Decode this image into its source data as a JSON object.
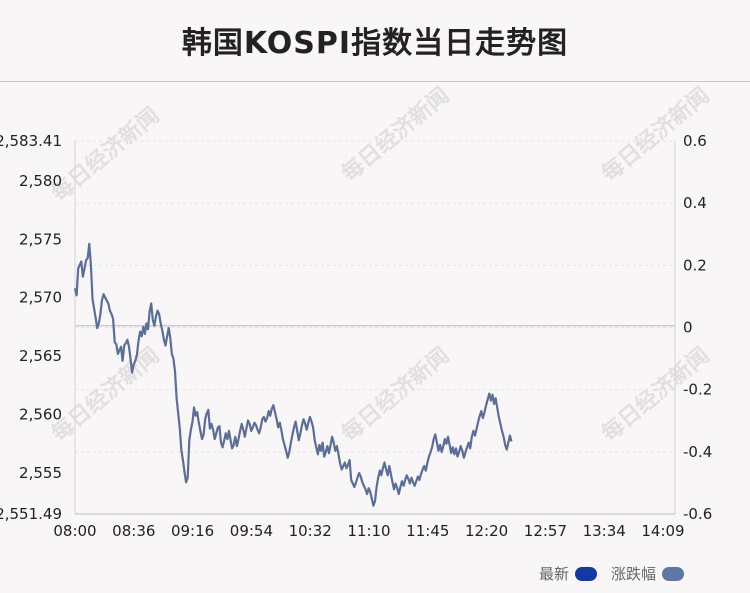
{
  "title": "韩国KOSPI指数当日走势图",
  "watermark": "每日经济新闻",
  "chart_data": {
    "type": "line",
    "ylim": [
      2551.49,
      2583.41
    ],
    "y_left_ticks": [
      "2,583.41",
      "2,580",
      "2,575",
      "2,570",
      "2,565",
      "2,560",
      "2,555",
      "2,551.49"
    ],
    "y_left_tick_values": [
      2583.41,
      2580,
      2575,
      2570,
      2565,
      2560,
      2555,
      2551.49
    ],
    "y_right_ticks": [
      "0.6",
      "0.4",
      "0.2",
      "0",
      "-0.2",
      "-0.4",
      "-0.6"
    ],
    "y_right_tick_values": [
      0.6,
      0.4,
      0.2,
      0,
      -0.2,
      -0.4,
      -0.6
    ],
    "y_right_range": [
      -0.6,
      0.6
    ],
    "x_ticks": [
      "08:00",
      "08:36",
      "09:16",
      "09:54",
      "10:32",
      "11:10",
      "11:45",
      "12:20",
      "12:57",
      "13:34",
      "14:09"
    ],
    "x_range_minutes": [
      0,
      378
    ],
    "series": [
      {
        "name": "最新",
        "color": "#5a6e9a",
        "points": [
          [
            0,
            2570.8
          ],
          [
            1,
            2570.2
          ],
          [
            2,
            2572.5
          ],
          [
            4,
            2573.1
          ],
          [
            5,
            2571.8
          ],
          [
            7,
            2573.2
          ],
          [
            8,
            2573.4
          ],
          [
            9,
            2574.6
          ],
          [
            10,
            2572.8
          ],
          [
            11,
            2569.9
          ],
          [
            13,
            2568.3
          ],
          [
            14,
            2567.4
          ],
          [
            15,
            2567.8
          ],
          [
            16,
            2568.6
          ],
          [
            17,
            2569.8
          ],
          [
            18,
            2570.3
          ],
          [
            19,
            2570.0
          ],
          [
            21,
            2569.5
          ],
          [
            22,
            2568.9
          ],
          [
            23,
            2568.6
          ],
          [
            24,
            2568.2
          ],
          [
            25,
            2566.2
          ],
          [
            26,
            2566.0
          ],
          [
            27,
            2565.2
          ],
          [
            29,
            2565.8
          ],
          [
            30,
            2564.6
          ],
          [
            31,
            2565.9
          ],
          [
            32,
            2566.1
          ],
          [
            33,
            2566.4
          ],
          [
            34,
            2565.8
          ],
          [
            35,
            2564.7
          ],
          [
            36,
            2563.6
          ],
          [
            37,
            2564.3
          ],
          [
            38,
            2564.6
          ],
          [
            39,
            2565.1
          ],
          [
            40,
            2566.3
          ],
          [
            41,
            2567.1
          ],
          [
            42,
            2566.7
          ],
          [
            43,
            2567.5
          ],
          [
            44,
            2566.9
          ],
          [
            45,
            2567.8
          ],
          [
            46,
            2567.3
          ],
          [
            47,
            2568.8
          ],
          [
            48,
            2569.5
          ],
          [
            49,
            2568.1
          ],
          [
            50,
            2567.6
          ],
          [
            51,
            2568.4
          ],
          [
            52,
            2568.9
          ],
          [
            53,
            2568.6
          ],
          [
            54,
            2567.8
          ],
          [
            55,
            2567.2
          ],
          [
            56,
            2566.4
          ],
          [
            57,
            2565.9
          ],
          [
            58,
            2566.7
          ],
          [
            59,
            2567.4
          ],
          [
            60,
            2566.6
          ],
          [
            61,
            2565.2
          ],
          [
            62,
            2564.8
          ],
          [
            63,
            2563.7
          ],
          [
            64,
            2561.4
          ],
          [
            65,
            2560.1
          ],
          [
            66,
            2558.8
          ],
          [
            67,
            2557.0
          ],
          [
            68,
            2556.1
          ],
          [
            69,
            2555.1
          ],
          [
            70,
            2554.2
          ],
          [
            71,
            2554.6
          ],
          [
            72,
            2557.8
          ],
          [
            73,
            2558.7
          ],
          [
            74,
            2559.4
          ],
          [
            75,
            2560.6
          ],
          [
            76,
            2559.9
          ],
          [
            77,
            2560.2
          ],
          [
            78,
            2559.3
          ],
          [
            79,
            2558.6
          ],
          [
            80,
            2557.9
          ],
          [
            81,
            2558.3
          ],
          [
            82,
            2559.6
          ],
          [
            83,
            2560.1
          ],
          [
            84,
            2560.4
          ],
          [
            85,
            2558.8
          ],
          [
            86,
            2559.2
          ],
          [
            87,
            2558.7
          ],
          [
            88,
            2557.9
          ],
          [
            89,
            2558.4
          ],
          [
            90,
            2558.9
          ],
          [
            91,
            2559.0
          ],
          [
            92,
            2557.6
          ],
          [
            93,
            2557.2
          ],
          [
            94,
            2557.8
          ],
          [
            95,
            2558.4
          ],
          [
            96,
            2557.9
          ],
          [
            97,
            2558.6
          ],
          [
            98,
            2557.8
          ],
          [
            99,
            2557.1
          ],
          [
            100,
            2557.4
          ],
          [
            101,
            2558.1
          ],
          [
            102,
            2557.3
          ],
          [
            103,
            2557.9
          ],
          [
            104,
            2558.6
          ],
          [
            105,
            2559.2
          ],
          [
            106,
            2558.7
          ],
          [
            107,
            2558.1
          ],
          [
            108,
            2558.8
          ],
          [
            109,
            2559.5
          ],
          [
            110,
            2559.2
          ],
          [
            111,
            2558.6
          ],
          [
            112,
            2558.9
          ],
          [
            113,
            2559.3
          ],
          [
            114,
            2559.1
          ],
          [
            115,
            2558.7
          ],
          [
            116,
            2558.4
          ],
          [
            117,
            2558.9
          ],
          [
            118,
            2559.6
          ],
          [
            119,
            2559.8
          ],
          [
            120,
            2559.4
          ],
          [
            121,
            2559.7
          ],
          [
            122,
            2560.3
          ],
          [
            123,
            2559.9
          ],
          [
            124,
            2560.5
          ],
          [
            125,
            2560.8
          ],
          [
            126,
            2560.2
          ],
          [
            127,
            2559.6
          ],
          [
            128,
            2558.9
          ],
          [
            129,
            2559.3
          ],
          [
            130,
            2558.7
          ],
          [
            131,
            2557.9
          ],
          [
            132,
            2557.4
          ],
          [
            133,
            2556.9
          ],
          [
            134,
            2556.3
          ],
          [
            135,
            2556.8
          ],
          [
            136,
            2557.6
          ],
          [
            137,
            2558.3
          ],
          [
            138,
            2558.9
          ],
          [
            139,
            2559.4
          ],
          [
            140,
            2558.6
          ],
          [
            141,
            2557.8
          ],
          [
            142,
            2558.4
          ],
          [
            143,
            2559.1
          ],
          [
            144,
            2559.6
          ],
          [
            145,
            2559.2
          ],
          [
            146,
            2558.7
          ],
          [
            147,
            2559.3
          ],
          [
            148,
            2559.8
          ],
          [
            149,
            2559.4
          ],
          [
            150,
            2558.9
          ],
          [
            151,
            2557.8
          ],
          [
            152,
            2557.2
          ],
          [
            153,
            2556.6
          ],
          [
            154,
            2557.4
          ],
          [
            155,
            2556.9
          ],
          [
            156,
            2557.6
          ],
          [
            157,
            2556.4
          ],
          [
            158,
            2556.8
          ],
          [
            159,
            2557.3
          ],
          [
            160,
            2556.7
          ],
          [
            161,
            2557.4
          ],
          [
            162,
            2558.1
          ],
          [
            163,
            2557.6
          ],
          [
            164,
            2556.9
          ],
          [
            165,
            2557.3
          ],
          [
            166,
            2556.6
          ],
          [
            167,
            2555.8
          ],
          [
            168,
            2555.3
          ],
          [
            169,
            2555.6
          ],
          [
            170,
            2555.9
          ],
          [
            171,
            2555.4
          ],
          [
            172,
            2555.7
          ],
          [
            173,
            2556.1
          ],
          [
            174,
            2554.4
          ],
          [
            175,
            2554.1
          ],
          [
            176,
            2553.8
          ],
          [
            177,
            2554.2
          ],
          [
            178,
            2554.6
          ],
          [
            179,
            2555.0
          ],
          [
            180,
            2554.7
          ],
          [
            181,
            2554.2
          ],
          [
            182,
            2553.9
          ],
          [
            183,
            2553.6
          ],
          [
            184,
            2553.2
          ],
          [
            185,
            2553.7
          ],
          [
            186,
            2553.4
          ],
          [
            187,
            2552.8
          ],
          [
            188,
            2552.2
          ],
          [
            189,
            2552.6
          ],
          [
            190,
            2553.8
          ],
          [
            191,
            2554.6
          ],
          [
            192,
            2555.2
          ],
          [
            193,
            2554.8
          ],
          [
            194,
            2555.4
          ],
          [
            195,
            2555.9
          ],
          [
            196,
            2555.3
          ],
          [
            197,
            2554.8
          ],
          [
            198,
            2555.6
          ],
          [
            199,
            2554.9
          ],
          [
            200,
            2554.2
          ],
          [
            201,
            2553.6
          ],
          [
            202,
            2554.1
          ],
          [
            203,
            2553.7
          ],
          [
            204,
            2553.2
          ],
          [
            205,
            2553.8
          ],
          [
            206,
            2554.3
          ],
          [
            207,
            2553.9
          ],
          [
            208,
            2554.4
          ],
          [
            209,
            2554.8
          ],
          [
            210,
            2554.5
          ],
          [
            211,
            2554.1
          ],
          [
            212,
            2554.6
          ],
          [
            213,
            2554.2
          ],
          [
            214,
            2553.9
          ],
          [
            215,
            2554.3
          ],
          [
            216,
            2554.7
          ],
          [
            217,
            2554.4
          ],
          [
            218,
            2554.9
          ],
          [
            219,
            2555.3
          ],
          [
            220,
            2555.6
          ],
          [
            221,
            2555.2
          ],
          [
            222,
            2555.9
          ],
          [
            223,
            2556.4
          ],
          [
            224,
            2556.8
          ],
          [
            225,
            2557.2
          ],
          [
            226,
            2557.9
          ],
          [
            227,
            2558.3
          ],
          [
            228,
            2557.6
          ],
          [
            229,
            2556.9
          ],
          [
            230,
            2557.4
          ],
          [
            231,
            2556.8
          ],
          [
            232,
            2557.3
          ],
          [
            233,
            2557.9
          ],
          [
            234,
            2557.5
          ],
          [
            235,
            2558.1
          ],
          [
            236,
            2557.4
          ],
          [
            237,
            2556.7
          ],
          [
            238,
            2557.2
          ],
          [
            239,
            2556.6
          ],
          [
            240,
            2557.1
          ],
          [
            241,
            2556.4
          ],
          [
            242,
            2556.8
          ],
          [
            243,
            2557.3
          ],
          [
            244,
            2556.9
          ],
          [
            245,
            2556.3
          ],
          [
            246,
            2556.8
          ],
          [
            247,
            2557.2
          ],
          [
            248,
            2557.6
          ],
          [
            249,
            2557.1
          ],
          [
            250,
            2558.1
          ],
          [
            251,
            2558.6
          ],
          [
            252,
            2558.2
          ],
          [
            253,
            2558.8
          ],
          [
            254,
            2559.4
          ],
          [
            255,
            2559.9
          ],
          [
            256,
            2560.3
          ],
          [
            257,
            2559.7
          ],
          [
            258,
            2560.2
          ],
          [
            259,
            2560.8
          ],
          [
            260,
            2561.3
          ],
          [
            261,
            2561.8
          ],
          [
            262,
            2561.2
          ],
          [
            263,
            2561.7
          ],
          [
            264,
            2560.9
          ],
          [
            265,
            2561.4
          ],
          [
            266,
            2560.6
          ],
          [
            267,
            2559.8
          ],
          [
            268,
            2559.2
          ],
          [
            269,
            2558.6
          ],
          [
            270,
            2558.1
          ],
          [
            271,
            2557.4
          ],
          [
            272,
            2557.0
          ],
          [
            273,
            2557.6
          ],
          [
            274,
            2558.2
          ],
          [
            275,
            2557.7
          ]
        ]
      }
    ],
    "reference_line": 2567.6
  },
  "legend": [
    {
      "label": "最新",
      "color": "#1438a8"
    },
    {
      "label": "涨跌幅",
      "color": "#5f76a8"
    }
  ]
}
